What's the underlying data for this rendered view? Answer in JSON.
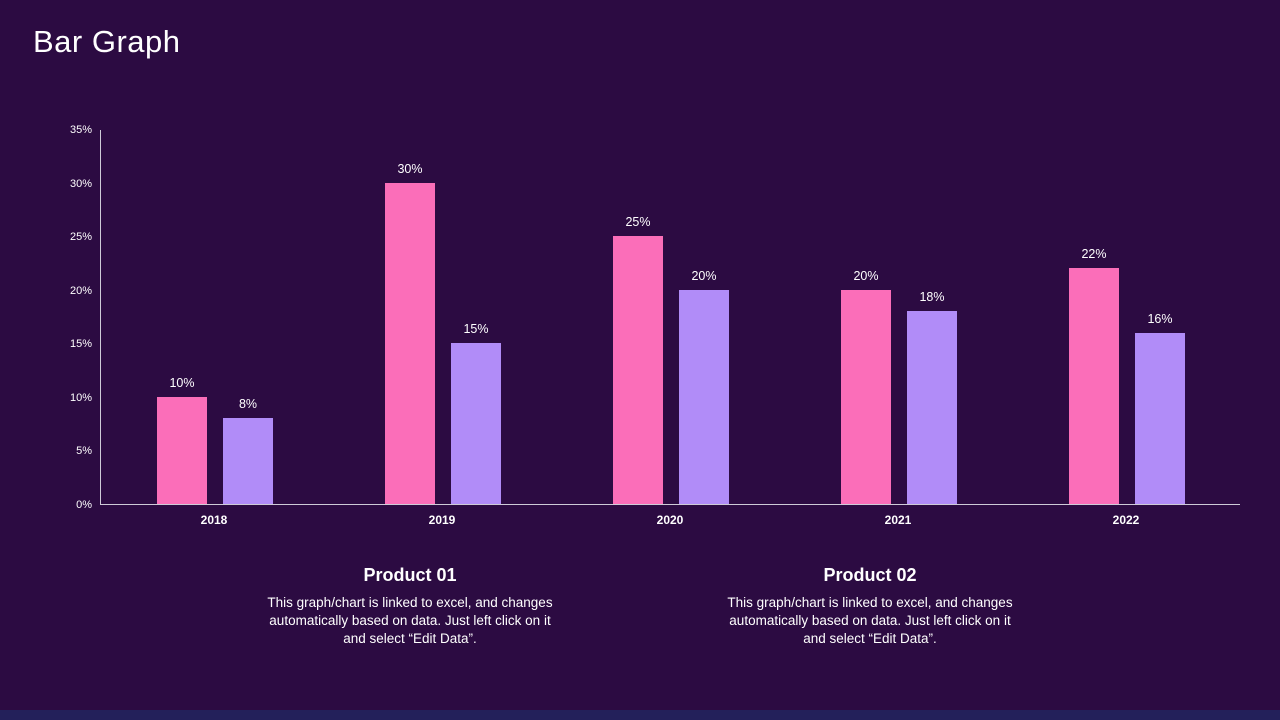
{
  "page": {
    "title": "Bar Graph"
  },
  "chart_data": {
    "type": "bar",
    "title": "",
    "xlabel": "",
    "ylabel": "",
    "categories": [
      "2018",
      "2019",
      "2020",
      "2021",
      "2022"
    ],
    "series": [
      {
        "name": "Product 01",
        "color": "#fb6eb9",
        "values": [
          10,
          30,
          25,
          20,
          22
        ]
      },
      {
        "name": "Product 02",
        "color": "#b18cf8",
        "values": [
          8,
          15,
          20,
          18,
          16
        ]
      }
    ],
    "y_ticks": [
      "0%",
      "5%",
      "10%",
      "15%",
      "20%",
      "25%",
      "30%",
      "35%"
    ],
    "ylim": [
      0,
      35
    ],
    "value_suffix": "%",
    "grid": false,
    "legend": "none",
    "data_labels": true
  },
  "footnotes": [
    {
      "heading": "Product 01",
      "body": "This graph/chart is linked to excel, and changes automatically based on data. Just left click on it and select “Edit Data”."
    },
    {
      "heading": "Product 02",
      "body": "This graph/chart is linked to excel, and changes automatically based on data. Just left click on it and select “Edit Data”."
    }
  ],
  "colors": {
    "background": "#2c0b42",
    "accent_bar": "#23205a",
    "axis": "#cfcbd8",
    "series1": "#fb6eb9",
    "series2": "#b18cf8"
  }
}
